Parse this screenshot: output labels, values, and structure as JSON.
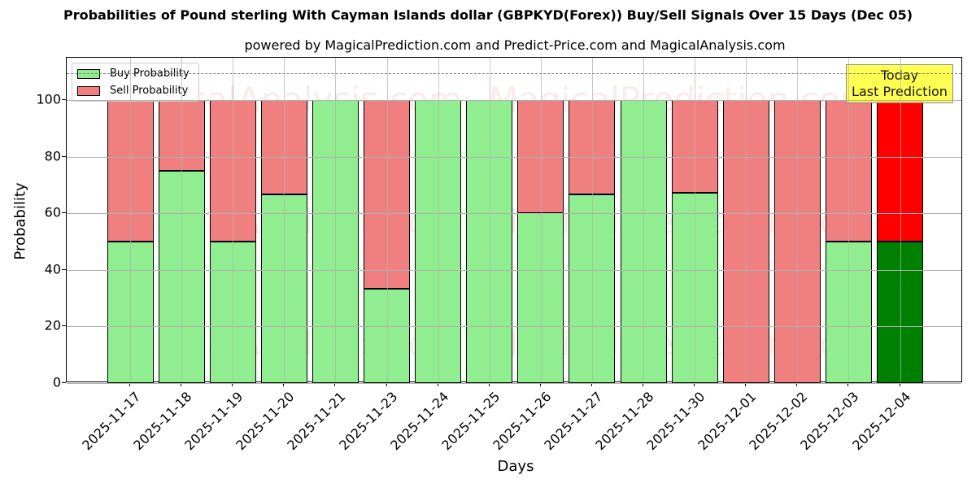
{
  "chart_data": {
    "type": "bar",
    "stacked": true,
    "title": "Probabilities of Pound sterling With Cayman Islands dollar (GBPKYD(Forex)) Buy/Sell Signals Over 15 Days (Dec 05)",
    "subtitle": "powered by MagicalPrediction.com and Predict-Price.com and MagicalAnalysis.com",
    "xlabel": "Days",
    "ylabel": "Probability",
    "ylim": [
      0,
      115
    ],
    "yticks": [
      0,
      20,
      40,
      60,
      80,
      100
    ],
    "grid": true,
    "reference_line": {
      "y": 110,
      "style": "dashed",
      "color": "#808080"
    },
    "categories": [
      "2025-11-17",
      "2025-11-18",
      "2025-11-19",
      "2025-11-20",
      "2025-11-21",
      "2025-11-23",
      "2025-11-24",
      "2025-11-25",
      "2025-11-26",
      "2025-11-27",
      "2025-11-28",
      "2025-11-30",
      "2025-12-01",
      "2025-12-02",
      "2025-12-03",
      "2025-12-04"
    ],
    "series": [
      {
        "name": "Buy Probability",
        "color": "#90ee90",
        "values": [
          50,
          75,
          50,
          66.7,
          100,
          33.3,
          100,
          100,
          60,
          66.7,
          100,
          67.3,
          0,
          0,
          50,
          50
        ]
      },
      {
        "name": "Sell Probability",
        "color": "#f08080",
        "values": [
          50,
          25,
          50,
          33.3,
          0,
          66.7,
          0,
          0,
          40,
          33.3,
          0,
          32.7,
          100,
          100,
          50,
          50
        ]
      }
    ],
    "highlight": {
      "index": 15,
      "buy_color": "#008000",
      "sell_color": "#ff0000"
    },
    "legend": {
      "position": "upper left",
      "entries": [
        "Buy Probability",
        "Sell Probability"
      ]
    },
    "annotation": {
      "line1": "Today",
      "line2": "Last Prediction",
      "bg": "#ffff40"
    }
  },
  "watermarks": [
    "MagicalAnalysis.com",
    "MagicalPrediction.com"
  ]
}
